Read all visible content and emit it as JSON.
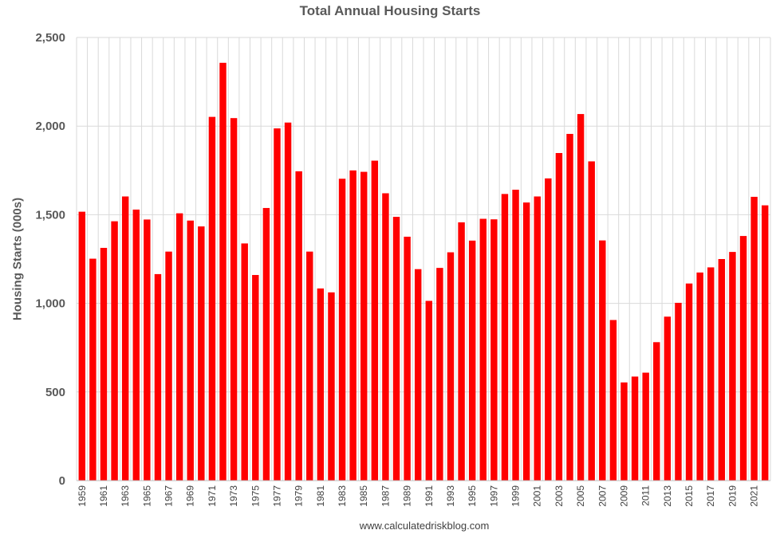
{
  "chart_data": {
    "type": "bar",
    "title": "Total Annual Housing Starts",
    "xlabel": "",
    "ylabel": "Housing Starts (000s)",
    "ylim": [
      0,
      2500
    ],
    "yticks": [
      0,
      500,
      1000,
      1500,
      2000,
      2500
    ],
    "ytick_labels": [
      "0",
      "500",
      "1,000",
      "1,500",
      "2,000",
      "2,500"
    ],
    "grid": true,
    "bar_color": "#ff0000",
    "categories": [
      "1959",
      "1960",
      "1961",
      "1962",
      "1963",
      "1964",
      "1965",
      "1966",
      "1967",
      "1968",
      "1969",
      "1970",
      "1971",
      "1972",
      "1973",
      "1974",
      "1975",
      "1976",
      "1977",
      "1978",
      "1979",
      "1980",
      "1981",
      "1982",
      "1983",
      "1984",
      "1985",
      "1986",
      "1987",
      "1988",
      "1989",
      "1990",
      "1991",
      "1992",
      "1993",
      "1994",
      "1995",
      "1996",
      "1997",
      "1998",
      "1999",
      "2000",
      "2001",
      "2002",
      "2003",
      "2004",
      "2005",
      "2006",
      "2007",
      "2008",
      "2009",
      "2010",
      "2011",
      "2012",
      "2013",
      "2014",
      "2015",
      "2016",
      "2017",
      "2018",
      "2019",
      "2020",
      "2021",
      "2022"
    ],
    "values": [
      1517,
      1252,
      1313,
      1463,
      1603,
      1529,
      1473,
      1165,
      1292,
      1508,
      1467,
      1434,
      2052,
      2357,
      2045,
      1338,
      1160,
      1538,
      1987,
      2020,
      1745,
      1292,
      1084,
      1062,
      1703,
      1750,
      1742,
      1805,
      1621,
      1488,
      1376,
      1193,
      1014,
      1200,
      1288,
      1457,
      1354,
      1477,
      1474,
      1617,
      1641,
      1569,
      1603,
      1705,
      1848,
      1956,
      2068,
      1801,
      1355,
      906,
      554,
      587,
      609,
      781,
      925,
      1003,
      1112,
      1174,
      1203,
      1250,
      1290,
      1380,
      1601,
      1553
    ],
    "x_tick_labels": [
      "1959",
      "1961",
      "1963",
      "1965",
      "1967",
      "1969",
      "1971",
      "1973",
      "1975",
      "1977",
      "1979",
      "1981",
      "1983",
      "1985",
      "1987",
      "1989",
      "1991",
      "1993",
      "1995",
      "1997",
      "1999",
      "2001",
      "2003",
      "2005",
      "2007",
      "2009",
      "2011",
      "2013",
      "2015",
      "2017",
      "2019",
      "2021"
    ]
  },
  "footer_text": "www.calculatedriskblog.com"
}
